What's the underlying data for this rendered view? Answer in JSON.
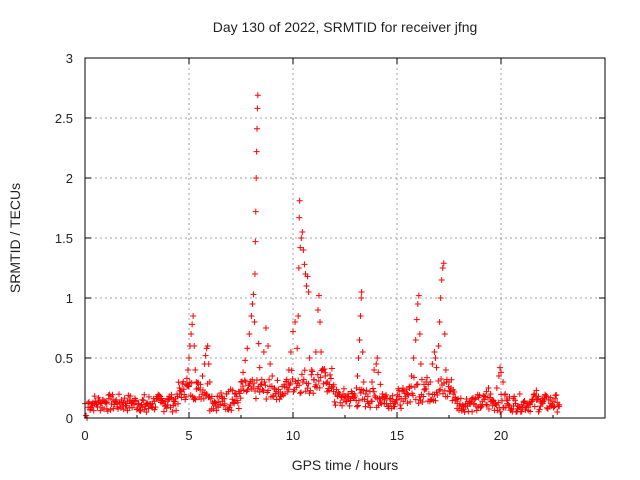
{
  "chart_data": {
    "type": "scatter",
    "title": "Day 130 of 2022, SRMTID for receiver jfng",
    "xlabel": "GPS time / hours",
    "ylabel": "SRMTID / TECUs",
    "xlim": [
      0,
      25
    ],
    "ylim": [
      0,
      3
    ],
    "xticks": [
      "0",
      "5",
      "10",
      "15",
      "20"
    ],
    "yticks": [
      "0",
      "0.5",
      "1",
      "1.5",
      "2",
      "2.5",
      "3"
    ],
    "grid": true,
    "marker": "+",
    "series": [
      {
        "name": "SRMTID",
        "color": "#ff0000",
        "points": [
          [
            0.0,
            0.12
          ],
          [
            0.05,
            0.02
          ],
          [
            0.1,
            0.0
          ],
          [
            0.15,
            0.09
          ],
          [
            0.25,
            0.07
          ],
          [
            0.35,
            0.1
          ],
          [
            0.45,
            0.12
          ],
          [
            0.55,
            0.11
          ],
          [
            0.65,
            0.13
          ],
          [
            0.75,
            0.12
          ],
          [
            0.85,
            0.15
          ],
          [
            0.95,
            0.14
          ],
          [
            1.05,
            0.13
          ],
          [
            1.15,
            0.16
          ],
          [
            1.25,
            0.18
          ],
          [
            1.35,
            0.15
          ],
          [
            1.45,
            0.14
          ],
          [
            1.55,
            0.12
          ],
          [
            1.65,
            0.13
          ],
          [
            1.75,
            0.15
          ],
          [
            1.85,
            0.13
          ],
          [
            1.95,
            0.12
          ],
          [
            2.05,
            0.14
          ],
          [
            2.15,
            0.15
          ],
          [
            2.25,
            0.13
          ],
          [
            2.35,
            0.12
          ],
          [
            2.45,
            0.14
          ],
          [
            2.55,
            0.12
          ],
          [
            2.65,
            0.1
          ],
          [
            2.75,
            0.09
          ],
          [
            2.85,
            0.07
          ],
          [
            2.95,
            0.05
          ],
          [
            3.05,
            0.08
          ],
          [
            3.15,
            0.1
          ],
          [
            3.25,
            0.12
          ],
          [
            3.35,
            0.14
          ],
          [
            3.45,
            0.16
          ],
          [
            3.55,
            0.15
          ],
          [
            3.65,
            0.13
          ],
          [
            3.75,
            0.12
          ],
          [
            3.85,
            0.14
          ],
          [
            3.95,
            0.16
          ],
          [
            4.05,
            0.18
          ],
          [
            4.15,
            0.17
          ],
          [
            4.25,
            0.15
          ],
          [
            4.35,
            0.16
          ],
          [
            4.45,
            0.18
          ],
          [
            4.55,
            0.2
          ],
          [
            4.65,
            0.22
          ],
          [
            4.75,
            0.24
          ],
          [
            4.85,
            0.28
          ],
          [
            4.9,
            0.33
          ],
          [
            4.95,
            0.4
          ],
          [
            5.0,
            0.5
          ],
          [
            5.05,
            0.6
          ],
          [
            5.1,
            0.7
          ],
          [
            5.15,
            0.78
          ],
          [
            5.2,
            0.85
          ],
          [
            5.25,
            0.6
          ],
          [
            5.3,
            0.4
          ],
          [
            5.35,
            0.3
          ],
          [
            5.45,
            0.25
          ],
          [
            5.55,
            0.28
          ],
          [
            5.65,
            0.35
          ],
          [
            5.75,
            0.45
          ],
          [
            5.8,
            0.52
          ],
          [
            5.85,
            0.58
          ],
          [
            5.9,
            0.6
          ],
          [
            5.95,
            0.45
          ],
          [
            6.0,
            0.3
          ],
          [
            6.1,
            0.18
          ],
          [
            6.2,
            0.12
          ],
          [
            6.3,
            0.1
          ],
          [
            6.4,
            0.09
          ],
          [
            6.5,
            0.11
          ],
          [
            6.6,
            0.14
          ],
          [
            6.7,
            0.16
          ],
          [
            6.8,
            0.2
          ],
          [
            6.9,
            0.22
          ],
          [
            7.0,
            0.24
          ],
          [
            7.1,
            0.23
          ],
          [
            7.2,
            0.2
          ],
          [
            7.3,
            0.18
          ],
          [
            7.4,
            0.22
          ],
          [
            7.5,
            0.3
          ],
          [
            7.6,
            0.38
          ],
          [
            7.7,
            0.48
          ],
          [
            7.8,
            0.58
          ],
          [
            7.9,
            0.7
          ],
          [
            8.0,
            0.85
          ],
          [
            8.05,
            0.95
          ],
          [
            8.1,
            1.03
          ],
          [
            8.15,
            0.8
          ],
          [
            8.17,
            1.2
          ],
          [
            8.19,
            1.47
          ],
          [
            8.21,
            1.72
          ],
          [
            8.23,
            2.0
          ],
          [
            8.25,
            2.22
          ],
          [
            8.27,
            2.41
          ],
          [
            8.29,
            2.58
          ],
          [
            8.31,
            2.69
          ],
          [
            8.35,
            0.62
          ],
          [
            8.4,
            0.42
          ],
          [
            8.5,
            0.32
          ],
          [
            8.6,
            0.55
          ],
          [
            8.7,
            0.75
          ],
          [
            8.8,
            0.6
          ],
          [
            8.9,
            0.45
          ],
          [
            9.0,
            0.35
          ],
          [
            9.1,
            0.25
          ],
          [
            9.2,
            0.22
          ],
          [
            9.3,
            0.2
          ],
          [
            9.4,
            0.18
          ],
          [
            9.5,
            0.2
          ],
          [
            9.6,
            0.26
          ],
          [
            9.7,
            0.32
          ],
          [
            9.8,
            0.4
          ],
          [
            9.9,
            0.55
          ],
          [
            10.0,
            0.72
          ],
          [
            10.1,
            0.8
          ],
          [
            10.2,
            0.58
          ],
          [
            10.25,
            0.85
          ],
          [
            10.28,
            1.25
          ],
          [
            10.3,
            1.67
          ],
          [
            10.32,
            1.81
          ],
          [
            10.35,
            1.42
          ],
          [
            10.4,
            1.5
          ],
          [
            10.45,
            1.55
          ],
          [
            10.5,
            1.4
          ],
          [
            10.55,
            1.28
          ],
          [
            10.6,
            1.2
          ],
          [
            10.65,
            1.1
          ],
          [
            10.7,
            1.18
          ],
          [
            10.75,
            1.05
          ],
          [
            10.8,
            0.5
          ],
          [
            10.9,
            0.4
          ],
          [
            11.0,
            0.32
          ],
          [
            11.1,
            0.55
          ],
          [
            11.2,
            0.9
          ],
          [
            11.25,
            1.02
          ],
          [
            11.3,
            0.8
          ],
          [
            11.35,
            0.55
          ],
          [
            11.45,
            0.4
          ],
          [
            11.55,
            0.35
          ],
          [
            11.65,
            0.3
          ],
          [
            11.75,
            0.28
          ],
          [
            11.85,
            0.25
          ],
          [
            11.95,
            0.22
          ],
          [
            12.05,
            0.2
          ],
          [
            12.15,
            0.18
          ],
          [
            12.25,
            0.2
          ],
          [
            12.35,
            0.17
          ],
          [
            12.45,
            0.15
          ],
          [
            12.55,
            0.18
          ],
          [
            12.65,
            0.2
          ],
          [
            12.75,
            0.16
          ],
          [
            12.85,
            0.18
          ],
          [
            12.95,
            0.2
          ],
          [
            13.05,
            0.25
          ],
          [
            13.1,
            0.35
          ],
          [
            13.15,
            0.5
          ],
          [
            13.2,
            0.65
          ],
          [
            13.25,
            0.85
          ],
          [
            13.28,
            1.0
          ],
          [
            13.3,
            1.05
          ],
          [
            13.35,
            0.55
          ],
          [
            13.4,
            0.3
          ],
          [
            13.5,
            0.2
          ],
          [
            13.6,
            0.18
          ],
          [
            13.7,
            0.22
          ],
          [
            13.8,
            0.3
          ],
          [
            13.9,
            0.4
          ],
          [
            14.0,
            0.45
          ],
          [
            14.05,
            0.5
          ],
          [
            14.1,
            0.38
          ],
          [
            14.2,
            0.28
          ],
          [
            14.3,
            0.2
          ],
          [
            14.4,
            0.15
          ],
          [
            14.5,
            0.12
          ],
          [
            14.6,
            0.1
          ],
          [
            14.7,
            0.12
          ],
          [
            14.8,
            0.14
          ],
          [
            14.9,
            0.12
          ],
          [
            15.0,
            0.15
          ],
          [
            15.1,
            0.18
          ],
          [
            15.2,
            0.16
          ],
          [
            15.3,
            0.14
          ],
          [
            15.4,
            0.16
          ],
          [
            15.5,
            0.2
          ],
          [
            15.6,
            0.25
          ],
          [
            15.7,
            0.35
          ],
          [
            15.8,
            0.5
          ],
          [
            15.9,
            0.65
          ],
          [
            15.95,
            0.82
          ],
          [
            16.0,
            0.95
          ],
          [
            16.05,
            1.02
          ],
          [
            16.1,
            0.7
          ],
          [
            16.15,
            0.45
          ],
          [
            16.2,
            0.32
          ],
          [
            16.3,
            0.28
          ],
          [
            16.4,
            0.3
          ],
          [
            16.5,
            0.28
          ],
          [
            16.6,
            0.3
          ],
          [
            16.7,
            0.45
          ],
          [
            16.8,
            0.55
          ],
          [
            16.85,
            0.5
          ],
          [
            16.9,
            0.42
          ],
          [
            17.0,
            0.6
          ],
          [
            17.05,
            0.8
          ],
          [
            17.1,
            1.0
          ],
          [
            17.15,
            1.15
          ],
          [
            17.2,
            1.25
          ],
          [
            17.25,
            1.29
          ],
          [
            17.3,
            0.7
          ],
          [
            17.35,
            0.4
          ],
          [
            17.4,
            0.32
          ],
          [
            17.5,
            0.3
          ],
          [
            17.6,
            0.25
          ],
          [
            17.7,
            0.2
          ],
          [
            17.8,
            0.15
          ],
          [
            17.9,
            0.12
          ],
          [
            18.0,
            0.1
          ],
          [
            18.1,
            0.08
          ],
          [
            18.2,
            0.07
          ],
          [
            18.3,
            0.1
          ],
          [
            18.4,
            0.12
          ],
          [
            18.5,
            0.14
          ],
          [
            18.6,
            0.16
          ],
          [
            18.7,
            0.12
          ],
          [
            18.8,
            0.1
          ],
          [
            18.9,
            0.09
          ],
          [
            19.0,
            0.11
          ],
          [
            19.1,
            0.14
          ],
          [
            19.2,
            0.18
          ],
          [
            19.3,
            0.22
          ],
          [
            19.4,
            0.25
          ],
          [
            19.5,
            0.2
          ],
          [
            19.6,
            0.15
          ],
          [
            19.7,
            0.12
          ],
          [
            19.8,
            0.25
          ],
          [
            19.9,
            0.35
          ],
          [
            19.95,
            0.42
          ],
          [
            20.0,
            0.38
          ],
          [
            20.1,
            0.3
          ],
          [
            20.2,
            0.2
          ],
          [
            20.3,
            0.12
          ],
          [
            20.4,
            0.1
          ],
          [
            20.5,
            0.08
          ],
          [
            20.6,
            0.1
          ],
          [
            20.7,
            0.12
          ],
          [
            20.8,
            0.1
          ],
          [
            20.9,
            0.09
          ],
          [
            21.0,
            0.11
          ],
          [
            21.1,
            0.13
          ],
          [
            21.2,
            0.1
          ],
          [
            21.3,
            0.09
          ],
          [
            21.4,
            0.11
          ],
          [
            21.5,
            0.14
          ],
          [
            21.6,
            0.2
          ],
          [
            21.7,
            0.23
          ],
          [
            21.8,
            0.18
          ],
          [
            21.9,
            0.14
          ],
          [
            22.0,
            0.12
          ],
          [
            22.1,
            0.15
          ],
          [
            22.2,
            0.18
          ],
          [
            22.3,
            0.15
          ],
          [
            22.4,
            0.12
          ],
          [
            22.5,
            0.14
          ],
          [
            22.6,
            0.16
          ],
          [
            22.7,
            0.13
          ],
          [
            22.8,
            0.11
          ]
        ],
        "band": {
          "segments": [
            {
              "from": 0.15,
              "to": 4.5,
              "lo": 0.05,
              "hi": 0.2
            },
            {
              "from": 4.5,
              "to": 6.0,
              "lo": 0.15,
              "hi": 0.32
            },
            {
              "from": 6.0,
              "to": 7.5,
              "lo": 0.06,
              "hi": 0.22
            },
            {
              "from": 7.5,
              "to": 9.8,
              "lo": 0.15,
              "hi": 0.32
            },
            {
              "from": 9.8,
              "to": 12.0,
              "lo": 0.2,
              "hi": 0.42
            },
            {
              "from": 12.0,
              "to": 15.5,
              "lo": 0.08,
              "hi": 0.25
            },
            {
              "from": 15.5,
              "to": 17.8,
              "lo": 0.12,
              "hi": 0.35
            },
            {
              "from": 17.8,
              "to": 22.8,
              "lo": 0.05,
              "hi": 0.2
            }
          ]
        }
      }
    ]
  }
}
